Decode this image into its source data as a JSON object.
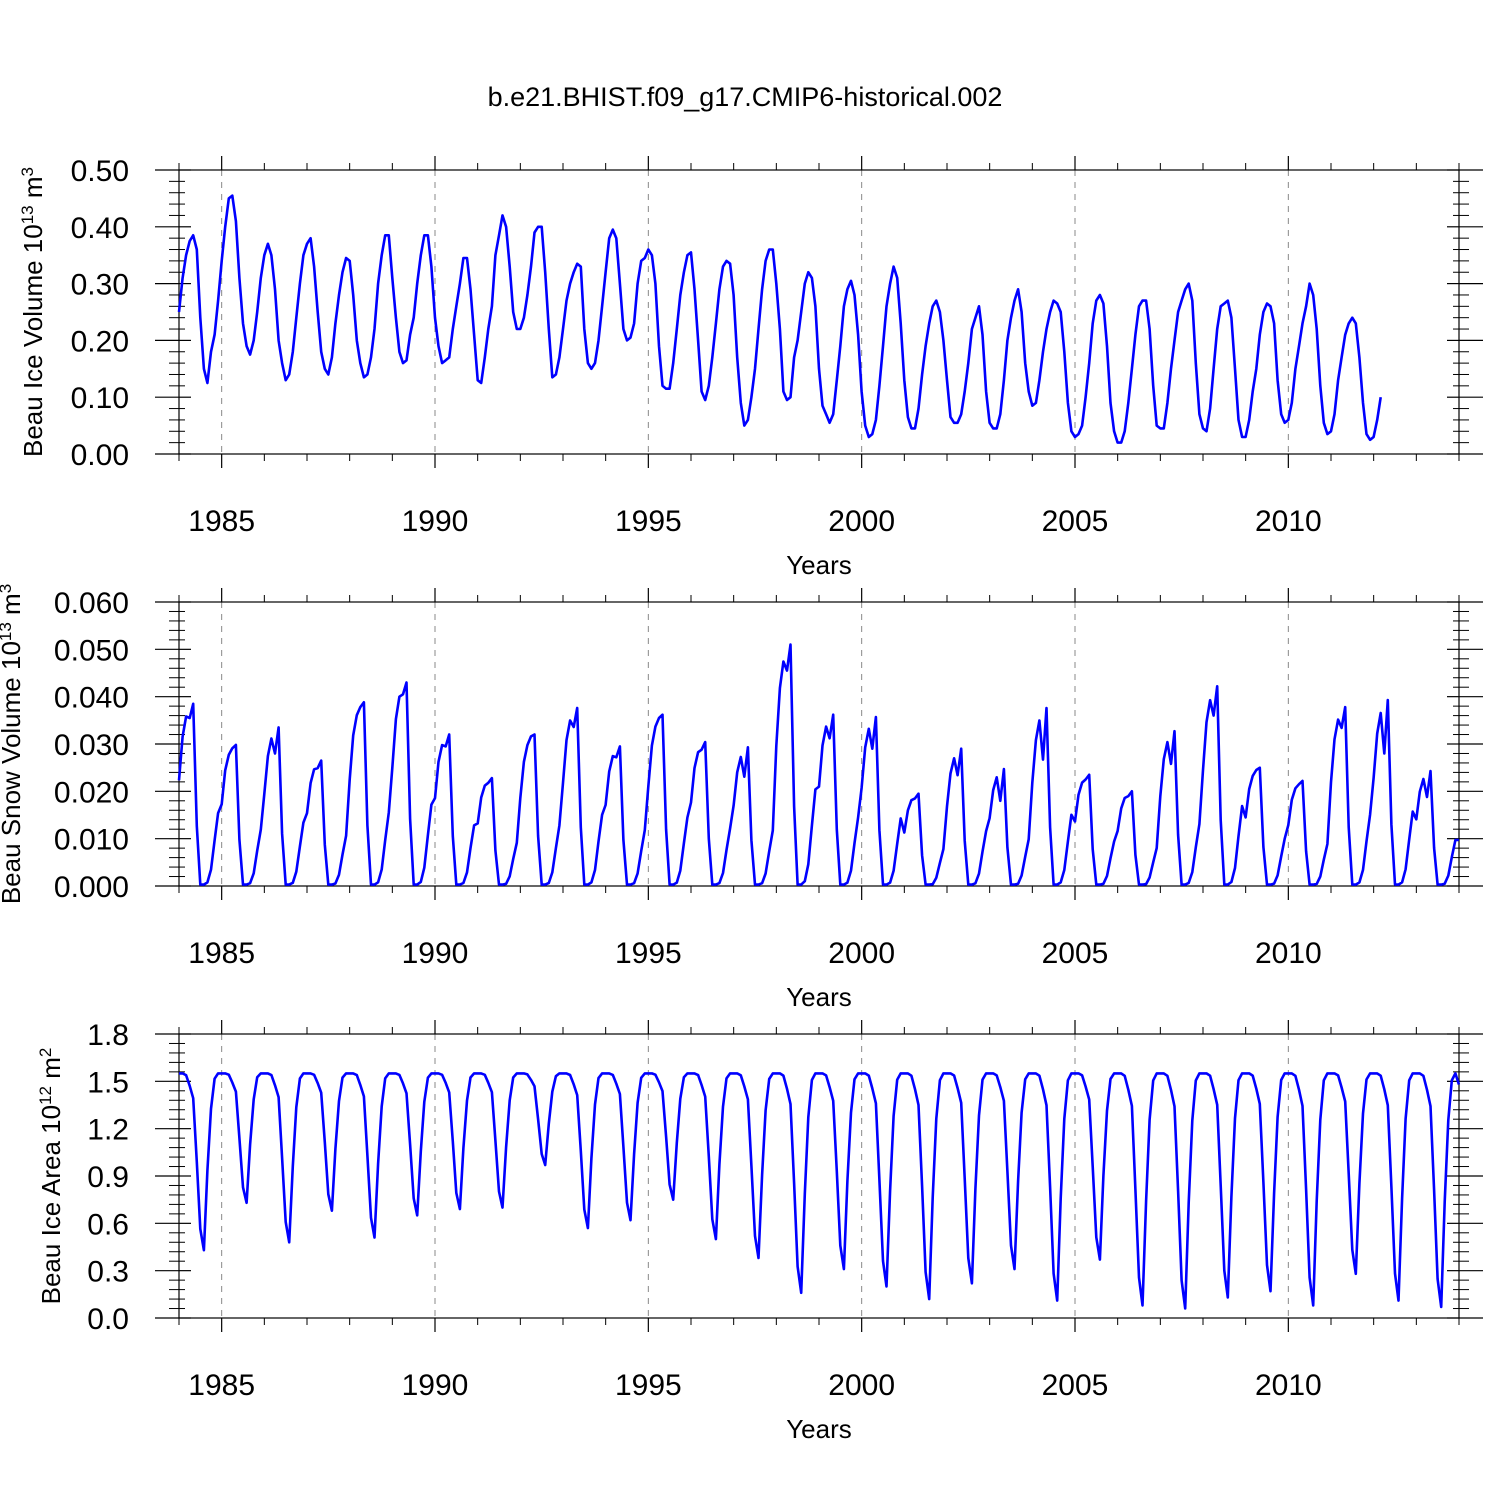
{
  "title": "b.e21.BHIST.f09_g17.CMIP6-historical.002",
  "colors": {
    "series": "#0000ff",
    "grid": "#888888",
    "axis": "#000000"
  },
  "chart_data": [
    {
      "type": "line",
      "ylabel": "Beau Ice Volume 10^13 m^3",
      "ylabel_parts": [
        "Beau Ice Volume 10",
        "13",
        " m",
        "3"
      ],
      "xlabel": "Years",
      "xlim": [
        1984.0,
        2014.0
      ],
      "ylim": [
        0.0,
        0.5
      ],
      "yticks": [
        0.0,
        0.1,
        0.2,
        0.3,
        0.4,
        0.5
      ],
      "ytick_labels": [
        "0.00",
        "0.10",
        "0.20",
        "0.30",
        "0.40",
        "0.50"
      ],
      "xticks": [
        1985,
        1990,
        1995,
        2000,
        2005,
        2010
      ],
      "xtick_labels": [
        "1985",
        "1990",
        "1995",
        "2000",
        "2005",
        "2010"
      ],
      "series": [
        {
          "name": "Beau Ice Volume",
          "start": 1984.0,
          "step": 0.08333,
          "values": [
            0.25,
            0.31,
            0.35,
            0.375,
            0.385,
            0.36,
            0.24,
            0.15,
            0.125,
            0.18,
            0.21,
            0.27,
            0.34,
            0.4,
            0.45,
            0.455,
            0.41,
            0.31,
            0.23,
            0.19,
            0.175,
            0.2,
            0.25,
            0.31,
            0.35,
            0.37,
            0.35,
            0.29,
            0.2,
            0.16,
            0.13,
            0.14,
            0.18,
            0.24,
            0.3,
            0.35,
            0.37,
            0.38,
            0.33,
            0.25,
            0.18,
            0.15,
            0.14,
            0.17,
            0.23,
            0.28,
            0.32,
            0.345,
            0.34,
            0.28,
            0.2,
            0.16,
            0.135,
            0.14,
            0.17,
            0.22,
            0.3,
            0.35,
            0.385,
            0.385,
            0.31,
            0.24,
            0.18,
            0.16,
            0.165,
            0.21,
            0.24,
            0.3,
            0.35,
            0.385,
            0.385,
            0.33,
            0.24,
            0.19,
            0.16,
            0.165,
            0.17,
            0.22,
            0.26,
            0.3,
            0.345,
            0.345,
            0.29,
            0.21,
            0.13,
            0.125,
            0.17,
            0.22,
            0.26,
            0.35,
            0.385,
            0.42,
            0.4,
            0.33,
            0.25,
            0.22,
            0.22,
            0.24,
            0.28,
            0.33,
            0.39,
            0.4,
            0.4,
            0.32,
            0.22,
            0.135,
            0.14,
            0.17,
            0.22,
            0.27,
            0.3,
            0.32,
            0.335,
            0.33,
            0.22,
            0.16,
            0.15,
            0.16,
            0.2,
            0.26,
            0.32,
            0.38,
            0.395,
            0.38,
            0.3,
            0.22,
            0.2,
            0.205,
            0.23,
            0.3,
            0.34,
            0.345,
            0.36,
            0.35,
            0.3,
            0.19,
            0.12,
            0.115,
            0.115,
            0.16,
            0.22,
            0.28,
            0.32,
            0.35,
            0.355,
            0.29,
            0.2,
            0.11,
            0.095,
            0.12,
            0.17,
            0.23,
            0.29,
            0.33,
            0.34,
            0.335,
            0.28,
            0.17,
            0.09,
            0.05,
            0.06,
            0.1,
            0.15,
            0.22,
            0.29,
            0.34,
            0.36,
            0.36,
            0.3,
            0.22,
            0.11,
            0.095,
            0.1,
            0.17,
            0.2,
            0.25,
            0.3,
            0.32,
            0.31,
            0.26,
            0.15,
            0.085,
            0.07,
            0.055,
            0.07,
            0.13,
            0.19,
            0.26,
            0.29,
            0.305,
            0.28,
            0.21,
            0.11,
            0.05,
            0.03,
            0.035,
            0.06,
            0.12,
            0.19,
            0.26,
            0.3,
            0.33,
            0.31,
            0.23,
            0.13,
            0.065,
            0.045,
            0.045,
            0.08,
            0.14,
            0.19,
            0.23,
            0.26,
            0.27,
            0.25,
            0.2,
            0.13,
            0.065,
            0.055,
            0.055,
            0.07,
            0.11,
            0.16,
            0.22,
            0.24,
            0.26,
            0.21,
            0.11,
            0.055,
            0.045,
            0.045,
            0.07,
            0.13,
            0.2,
            0.24,
            0.27,
            0.29,
            0.25,
            0.16,
            0.11,
            0.085,
            0.09,
            0.13,
            0.18,
            0.22,
            0.25,
            0.27,
            0.265,
            0.25,
            0.18,
            0.09,
            0.04,
            0.03,
            0.035,
            0.05,
            0.1,
            0.16,
            0.23,
            0.27,
            0.28,
            0.265,
            0.19,
            0.09,
            0.04,
            0.02,
            0.02,
            0.04,
            0.09,
            0.15,
            0.21,
            0.26,
            0.27,
            0.27,
            0.22,
            0.12,
            0.05,
            0.045,
            0.045,
            0.09,
            0.15,
            0.2,
            0.25,
            0.27,
            0.29,
            0.3,
            0.27,
            0.16,
            0.07,
            0.045,
            0.04,
            0.08,
            0.15,
            0.22,
            0.26,
            0.265,
            0.27,
            0.24,
            0.15,
            0.06,
            0.03,
            0.03,
            0.06,
            0.11,
            0.15,
            0.21,
            0.25,
            0.265,
            0.26,
            0.23,
            0.13,
            0.07,
            0.055,
            0.06,
            0.09,
            0.15,
            0.19,
            0.23,
            0.26,
            0.3,
            0.28,
            0.22,
            0.12,
            0.055,
            0.035,
            0.04,
            0.07,
            0.13,
            0.17,
            0.21,
            0.23,
            0.24,
            0.23,
            0.17,
            0.09,
            0.035,
            0.025,
            0.03,
            0.06,
            0.1
          ]
        }
      ]
    },
    {
      "type": "line",
      "ylabel": "Beau Snow Volume 10^13 m^3",
      "ylabel_parts": [
        "Beau Snow Volume 10",
        "13",
        " m",
        "3"
      ],
      "xlabel": "Years",
      "xlim": [
        1984.0,
        2014.0
      ],
      "ylim": [
        0.0,
        0.06
      ],
      "yticks": [
        0.0,
        0.01,
        0.02,
        0.03,
        0.04,
        0.05,
        0.06
      ],
      "ytick_labels": [
        "0.000",
        "0.010",
        "0.020",
        "0.030",
        "0.040",
        "0.050",
        "0.060"
      ],
      "xticks": [
        1985,
        1990,
        1995,
        2000,
        2005,
        2010
      ],
      "xtick_labels": [
        "1985",
        "1990",
        "1995",
        "2000",
        "2005",
        "2010"
      ],
      "series": [
        {
          "name": "Beau Snow Volume",
          "start": 1984.0,
          "step": 0.08333,
          "peaks": [
            0.0385,
            0.0298,
            0.0335,
            0.0265,
            0.0388,
            0.043,
            0.032,
            0.0228,
            0.032,
            0.0376,
            0.0295,
            0.0362,
            0.0304,
            0.0293,
            0.051,
            0.0362,
            0.0357,
            0.0195,
            0.029,
            0.0247,
            0.0376,
            0.0235,
            0.02,
            0.0327,
            0.0422,
            0.025,
            0.0222,
            0.0378,
            0.0393,
            0.0243
          ],
          "pre_peak": [
            0.0355,
            0.0291,
            0.028,
            0.0249,
            0.0378,
            0.0405,
            0.0295,
            0.0218,
            0.0316,
            0.0336,
            0.0272,
            0.0355,
            0.0288,
            0.0231,
            0.0455,
            0.0312,
            0.029,
            0.0185,
            0.0234,
            0.018,
            0.0267,
            0.0225,
            0.019,
            0.0258,
            0.036,
            0.0245,
            0.0215,
            0.0334,
            0.028,
            0.0188
          ],
          "min_value": 0.0003
        }
      ]
    },
    {
      "type": "line",
      "ylabel": "Beau Ice Area 10^12 m^2",
      "ylabel_parts": [
        "Beau Ice Area 10",
        "12",
        " m",
        "2"
      ],
      "xlabel": "Years",
      "xlim": [
        1984.0,
        2014.0
      ],
      "ylim": [
        0.0,
        1.8
      ],
      "yticks": [
        0.0,
        0.3,
        0.6,
        0.9,
        1.2,
        1.5,
        1.8
      ],
      "ytick_labels": [
        "0.0",
        "0.3",
        "0.6",
        "0.9",
        "1.2",
        "1.5",
        "1.8"
      ],
      "xticks": [
        1985,
        1990,
        1995,
        2000,
        2005,
        2010
      ],
      "xtick_labels": [
        "1985",
        "1990",
        "1995",
        "2000",
        "2005",
        "2010"
      ],
      "series": [
        {
          "name": "Beau Ice Area",
          "start": 1984.0,
          "step": 0.08333,
          "plateau": 1.55,
          "minima": [
            0.43,
            0.73,
            0.48,
            0.68,
            0.51,
            0.65,
            0.69,
            0.7,
            0.97,
            0.57,
            0.62,
            0.75,
            0.5,
            0.38,
            0.16,
            0.31,
            0.2,
            0.12,
            0.22,
            0.31,
            0.11,
            0.37,
            0.08,
            0.06,
            0.13,
            0.17,
            0.08,
            0.28,
            0.11,
            0.07
          ]
        }
      ]
    }
  ]
}
